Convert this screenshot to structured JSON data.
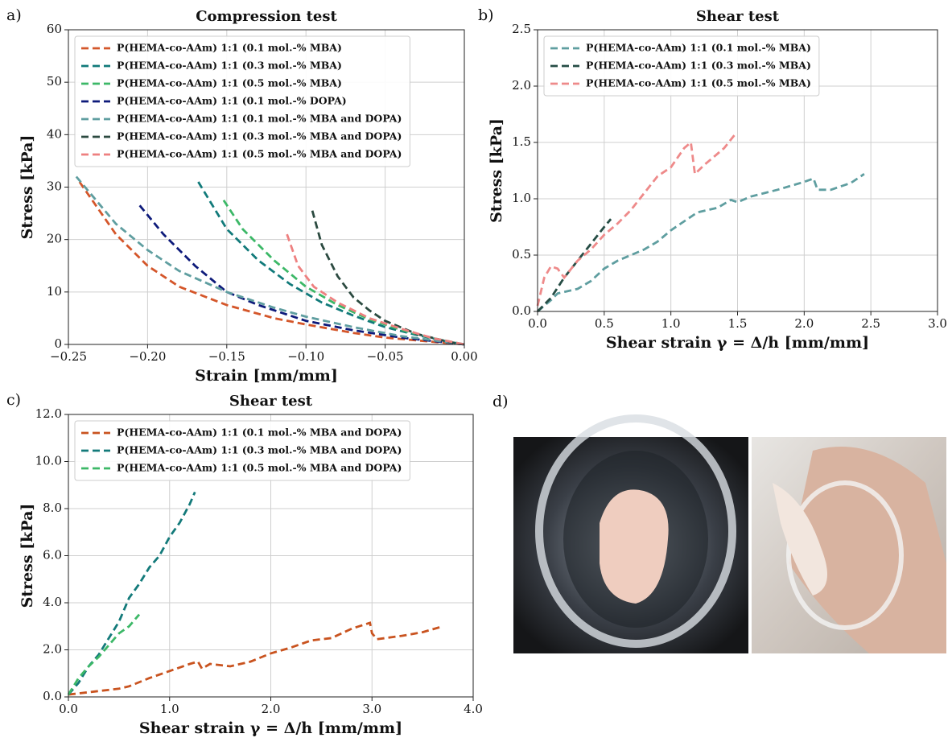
{
  "chart_data": [
    {
      "type": "line",
      "panel": "a)",
      "title": "Compression test",
      "xlabel": "Strain [mm/mm]",
      "ylabel": "Stress [kPa]",
      "xlim": [
        -0.25,
        0
      ],
      "ylim": [
        0,
        60
      ],
      "xticks": [
        {
          "value": -0.25,
          "label": "−0.25"
        },
        {
          "value": -0.2,
          "label": "−0.20"
        },
        {
          "value": -0.15,
          "label": "−0.15"
        },
        {
          "value": -0.1,
          "label": "−0.10"
        },
        {
          "value": -0.05,
          "label": "−0.05"
        },
        {
          "value": 0,
          "label": "0.00"
        }
      ],
      "yticks": [
        0,
        10,
        20,
        30,
        40,
        50,
        60
      ],
      "grid": true,
      "legend": "upper left",
      "series": [
        {
          "name": "P(HEMA-co-AAm) 1:1 (0.1 mol.-% MBA)",
          "color": "#d4562a",
          "x": [
            -0.243,
            -0.22,
            -0.2,
            -0.18,
            -0.15,
            -0.12,
            -0.1,
            -0.07,
            -0.05,
            -0.02,
            0
          ],
          "values": [
            31,
            21,
            15,
            11,
            7.5,
            5,
            3.8,
            2.2,
            1.3,
            0.5,
            0
          ]
        },
        {
          "name": "P(HEMA-co-AAm) 1:1 (0.3 mol.-% MBA)",
          "color": "#117a7a",
          "x": [
            -0.168,
            -0.15,
            -0.13,
            -0.11,
            -0.09,
            -0.07,
            -0.05,
            -0.03,
            -0.01,
            0
          ],
          "values": [
            31,
            22,
            16,
            11.5,
            8,
            5.5,
            3.3,
            1.8,
            0.5,
            0
          ]
        },
        {
          "name": "P(HEMA-co-AAm) 1:1 (0.5 mol.-% MBA)",
          "color": "#3cb867",
          "x": [
            -0.152,
            -0.14,
            -0.12,
            -0.1,
            -0.08,
            -0.06,
            -0.04,
            -0.02,
            0
          ],
          "values": [
            27.5,
            22,
            16,
            11,
            7.5,
            4.8,
            2.8,
            1.2,
            0
          ]
        },
        {
          "name": "P(HEMA-co-AAm) 1:1 (0.1 mol.-% DOPA)",
          "color": "#0d1a7a",
          "x": [
            -0.205,
            -0.19,
            -0.17,
            -0.15,
            -0.13,
            -0.1,
            -0.07,
            -0.04,
            0
          ],
          "values": [
            26.5,
            21,
            15,
            10,
            7.5,
            4.5,
            2.7,
            1.3,
            0
          ]
        },
        {
          "name": "P(HEMA-co-AAm) 1:1 (0.1 mol.-% MBA and DOPA)",
          "color": "#5f9ea0",
          "x": [
            -0.245,
            -0.22,
            -0.2,
            -0.18,
            -0.15,
            -0.12,
            -0.1,
            -0.07,
            -0.04,
            0
          ],
          "values": [
            32,
            23,
            18,
            14,
            10,
            7,
            5.3,
            3.3,
            1.6,
            0
          ]
        },
        {
          "name": "P(HEMA-co-AAm) 1:1 (0.3 mol.-% MBA and DOPA)",
          "color": "#2b4a40",
          "x": [
            -0.096,
            -0.09,
            -0.08,
            -0.07,
            -0.06,
            -0.05,
            -0.03,
            -0.01,
            0
          ],
          "values": [
            25.5,
            19,
            13,
            9,
            6.5,
            4.5,
            2,
            0.5,
            0
          ]
        },
        {
          "name": "P(HEMA-co-AAm) 1:1 (0.5 mol.-% MBA and DOPA)",
          "color": "#ee8080",
          "x": [
            -0.112,
            -0.105,
            -0.095,
            -0.08,
            -0.06,
            -0.04,
            -0.02,
            0
          ],
          "values": [
            21,
            15,
            11,
            8,
            5,
            3,
            1.2,
            0
          ]
        }
      ]
    },
    {
      "type": "line",
      "panel": "b)",
      "title": "Shear test",
      "xlabel": "Shear strain γ = Δ/h [mm/mm]",
      "ylabel": "Stress [kPa]",
      "xlim": [
        0,
        3
      ],
      "ylim": [
        0,
        2.5
      ],
      "xticks": [
        {
          "value": 0,
          "label": "0.0"
        },
        0.5,
        {
          "value": 1,
          "label": "1.0"
        },
        1.5,
        {
          "value": 2,
          "label": "2.0"
        },
        2.5,
        {
          "value": 3,
          "label": "3.0"
        }
      ],
      "yticks": [
        {
          "value": 0,
          "label": "0.0"
        },
        0.5,
        {
          "value": 1,
          "label": "1.0"
        },
        1.5,
        {
          "value": 2,
          "label": "2.0"
        },
        2.5
      ],
      "grid": true,
      "legend": "upper left",
      "series": [
        {
          "name": "P(HEMA-co-AAm) 1:1 (0.1 mol.-% MBA)",
          "color": "#5f9ea0",
          "x": [
            0,
            0.1,
            0.15,
            0.3,
            0.4,
            0.5,
            0.6,
            0.8,
            0.9,
            1.0,
            1.1,
            1.2,
            1.35,
            1.45,
            1.5,
            1.6,
            1.8,
            2.0,
            2.07,
            2.1,
            2.2,
            2.35,
            2.45
          ],
          "values": [
            0,
            0.1,
            0.16,
            0.2,
            0.27,
            0.38,
            0.45,
            0.55,
            0.62,
            0.72,
            0.8,
            0.88,
            0.92,
            0.99,
            0.97,
            1.02,
            1.08,
            1.15,
            1.18,
            1.08,
            1.08,
            1.14,
            1.22
          ]
        },
        {
          "name": "P(HEMA-co-AAm) 1:1 (0.3 mol.-% MBA)",
          "color": "#264d45",
          "x": [
            0,
            0.1,
            0.2,
            0.3,
            0.4,
            0.5,
            0.55
          ],
          "values": [
            0,
            0.12,
            0.3,
            0.45,
            0.6,
            0.75,
            0.82
          ]
        },
        {
          "name": "P(HEMA-co-AAm) 1:1 (0.5 mol.-% MBA)",
          "color": "#ee8a8a",
          "x": [
            0,
            0.05,
            0.1,
            0.15,
            0.2,
            0.3,
            0.4,
            0.5,
            0.6,
            0.7,
            0.8,
            0.9,
            1.0,
            1.1,
            1.15,
            1.18,
            1.25,
            1.3,
            1.4,
            1.48
          ],
          "values": [
            0.05,
            0.3,
            0.4,
            0.38,
            0.3,
            0.45,
            0.55,
            0.68,
            0.78,
            0.9,
            1.05,
            1.2,
            1.28,
            1.45,
            1.5,
            1.22,
            1.3,
            1.35,
            1.45,
            1.57
          ]
        }
      ]
    },
    {
      "type": "line",
      "panel": "c)",
      "title": "Shear test",
      "xlabel": "Shear strain γ = Δ/h [mm/mm]",
      "ylabel": "Stress [kPa]",
      "xlim": [
        0,
        4
      ],
      "ylim": [
        0,
        12
      ],
      "xticks": [
        {
          "value": 0,
          "label": "0.0"
        },
        {
          "value": 1,
          "label": "1.0"
        },
        {
          "value": 2,
          "label": "2.0"
        },
        {
          "value": 3,
          "label": "3.0"
        },
        {
          "value": 4,
          "label": "4.0"
        }
      ],
      "yticks": [
        {
          "value": 0,
          "label": "0.0"
        },
        {
          "value": 2,
          "label": "2.0"
        },
        {
          "value": 4,
          "label": "4.0"
        },
        {
          "value": 6,
          "label": "6.0"
        },
        {
          "value": 8,
          "label": "8.0"
        },
        {
          "value": 10,
          "label": "10.0"
        },
        {
          "value": 12,
          "label": "12.0"
        }
      ],
      "grid": true,
      "legend": "upper left",
      "series": [
        {
          "name": "P(HEMA-co-AAm) 1:1 (0.1 mol.-% MBA and DOPA)",
          "color": "#c9531f",
          "x": [
            0,
            0.3,
            0.5,
            0.6,
            0.8,
            1.0,
            1.2,
            1.28,
            1.32,
            1.4,
            1.6,
            1.8,
            2.0,
            2.2,
            2.4,
            2.6,
            2.8,
            2.98,
            3.0,
            3.05,
            3.3,
            3.5,
            3.7
          ],
          "values": [
            0.1,
            0.25,
            0.35,
            0.45,
            0.8,
            1.1,
            1.4,
            1.5,
            1.2,
            1.4,
            1.3,
            1.5,
            1.85,
            2.1,
            2.4,
            2.5,
            2.9,
            3.15,
            2.7,
            2.45,
            2.6,
            2.75,
            3.0
          ]
        },
        {
          "name": "P(HEMA-co-AAm) 1:1 (0.3 mol.-% MBA and DOPA)",
          "color": "#137a7a",
          "x": [
            0,
            0.1,
            0.2,
            0.3,
            0.4,
            0.5,
            0.6,
            0.7,
            0.8,
            0.9,
            1.0,
            1.1,
            1.2,
            1.25
          ],
          "values": [
            0.1,
            0.6,
            1.3,
            1.8,
            2.5,
            3.2,
            4.2,
            4.8,
            5.5,
            6.0,
            6.8,
            7.4,
            8.2,
            8.7
          ]
        },
        {
          "name": "P(HEMA-co-AAm) 1:1 (0.5 mol.-% MBA and DOPA)",
          "color": "#3cb867",
          "x": [
            0,
            0.1,
            0.2,
            0.3,
            0.4,
            0.5,
            0.6,
            0.7
          ],
          "values": [
            0.1,
            0.8,
            1.3,
            1.7,
            2.2,
            2.7,
            3.0,
            3.5
          ]
        }
      ]
    }
  ],
  "photo_panel": {
    "label": "d)"
  }
}
